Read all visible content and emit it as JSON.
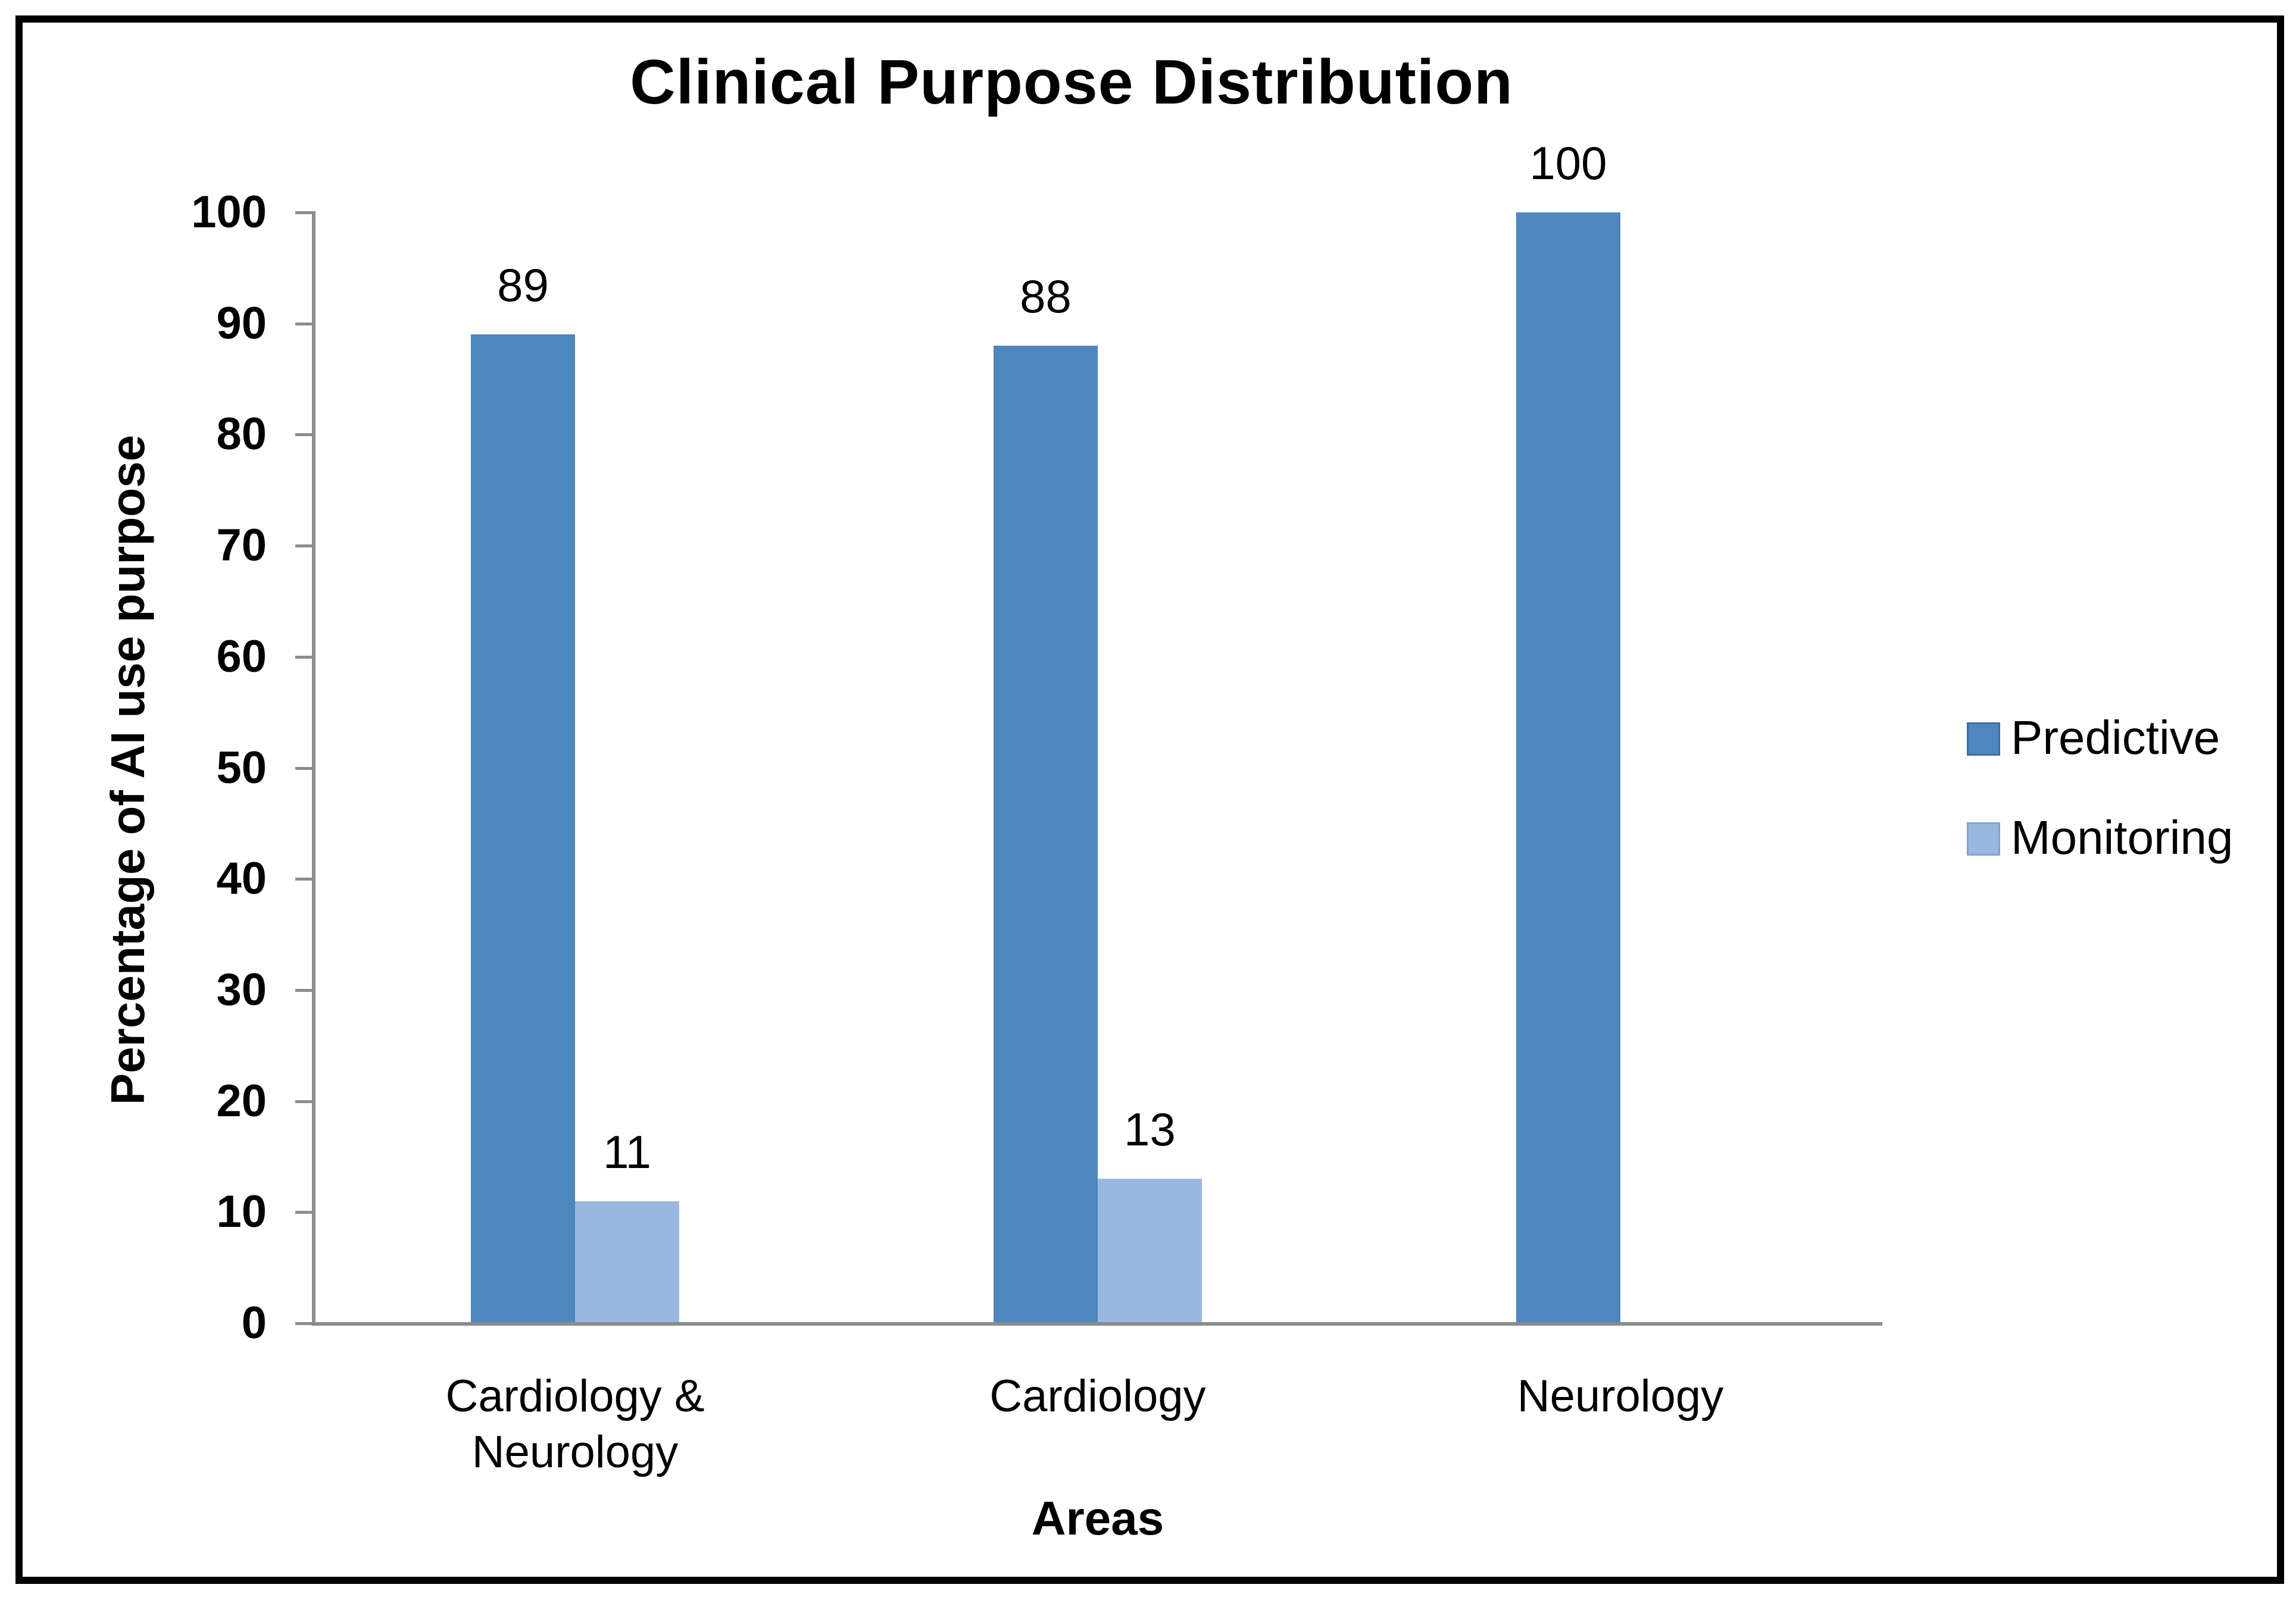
{
  "chart_data": {
    "type": "bar",
    "title": "Clinical Purpose Distribution",
    "xlabel": "Areas",
    "ylabel": "Percentage of AI use purpose",
    "ylim": [
      0,
      100
    ],
    "yticks": [
      0,
      10,
      20,
      30,
      40,
      50,
      60,
      70,
      80,
      90,
      100
    ],
    "grid": false,
    "legend_position": "right",
    "data_labels": true,
    "categories": [
      "Cardiology & Neurology",
      "Cardiology",
      "Neurology"
    ],
    "categories_display": [
      [
        "Cardiology &",
        "Neurology"
      ],
      [
        "Cardiology"
      ],
      [
        "Neurology"
      ]
    ],
    "series": [
      {
        "name": "Predictive",
        "color": "#4E86BE",
        "swatch_border": "#3E6F9F",
        "values": [
          89,
          88,
          100
        ]
      },
      {
        "name": "Monitoring",
        "color": "#98B8E0",
        "swatch_border": "#7FA3CF",
        "values": [
          11,
          13,
          null
        ]
      }
    ],
    "value_labels": [
      [
        "89",
        "88",
        "100"
      ],
      [
        "11",
        "13",
        ""
      ]
    ],
    "colors": {
      "axis": "#8C8C8C",
      "text": "#000000",
      "frame": "#000000"
    }
  }
}
